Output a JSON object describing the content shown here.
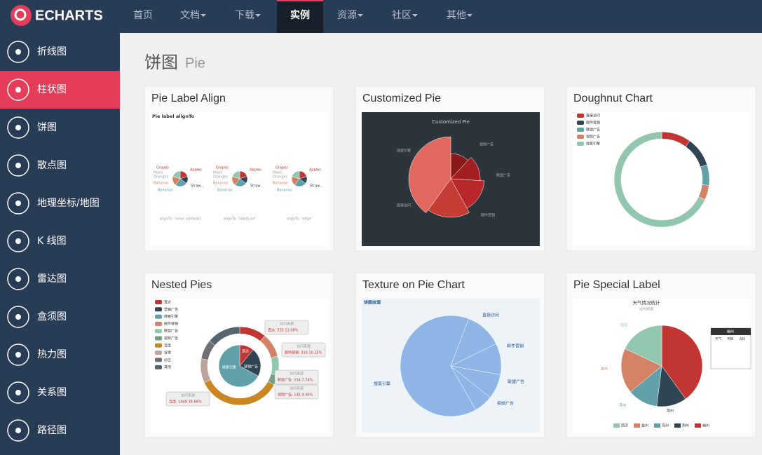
{
  "nav": {
    "logo": "ECHARTS",
    "items": [
      "首页",
      "文档",
      "下载",
      "实例",
      "资源",
      "社区",
      "其他"
    ]
  },
  "sidebar": {
    "items": [
      "折线图",
      "柱状图",
      "饼图",
      "散点图",
      "地理坐标/地图",
      "K 线图",
      "雷达图",
      "盒须图",
      "热力图",
      "关系图",
      "路径图"
    ]
  },
  "heading": {
    "title": "饼图",
    "subtitle": "Pie"
  },
  "cards": [
    {
      "title": "Pie Label Align",
      "thumb": {
        "title": "Pie label alignTo",
        "labels": [
          "Grapes",
          "Pears",
          "Oranges",
          "Bananas",
          "Apples",
          "Straw..."
        ],
        "captions": [
          "alignTo: 'none' (default)",
          "alignTo: 'labelLine'",
          "alignTo: 'edge'"
        ]
      }
    },
    {
      "title": "Customized Pie",
      "thumb": {
        "title": "Customized Pie",
        "labels": [
          "视频广告",
          "联盟广告",
          "邮件营销",
          "直接访问",
          "搜索引擎"
        ]
      }
    },
    {
      "title": "Doughnut Chart",
      "thumb": {
        "labels": [
          "直接访问",
          "邮件营销",
          "联盟广告",
          "视频广告",
          "搜索引擎"
        ]
      }
    },
    {
      "title": "Nested Pies",
      "thumb": {
        "labels": [
          "直达",
          "营销广告",
          "搜索引擎",
          "邮件营销",
          "联盟广告",
          "视频广告",
          "百度",
          "谷歌",
          "必应",
          "其他"
        ],
        "callout_title": "访问来源",
        "callouts": [
          "直达: 335 11.08%",
          "邮件营销: 310 10.25%",
          "联盟广告: 234 7.74%",
          "视频广告: 135 4.46%",
          "百度: 1048 34.66%"
        ]
      }
    },
    {
      "title": "Texture on Pie Chart",
      "thumb": {
        "title": "饼图纹理",
        "labels": [
          "直接访问",
          "邮件营销",
          "联盟广告",
          "视频广告",
          "搜索引擎"
        ]
      }
    },
    {
      "title": "Pie Special Label",
      "thumb": {
        "title": "天气情况统计",
        "subtitle": "虚构数据",
        "labels": [
          "西凉",
          "益州",
          "兖州",
          "荆州",
          "幽州"
        ],
        "tooltip": {
          "title": "幽州",
          "header": [
            "天气",
            "天数",
            "占比"
          ]
        }
      }
    }
  ]
}
